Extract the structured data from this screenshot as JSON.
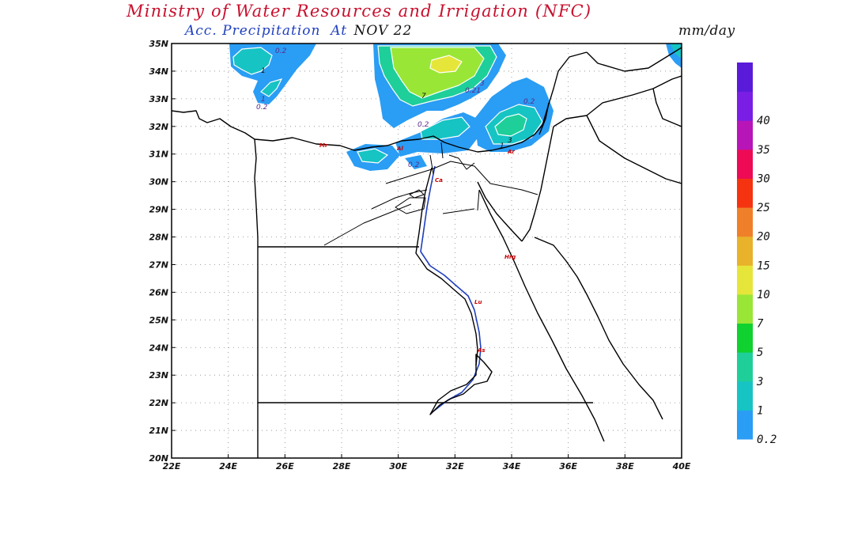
{
  "title": "Ministry of Water Resources and Irrigation (NFC)",
  "subtitle": {
    "product": "Acc. Precipitation",
    "at": "At",
    "date": "NOV 22"
  },
  "units": "mm/day",
  "map": {
    "lon_ticks": [
      "22E",
      "24E",
      "26E",
      "28E",
      "30E",
      "32E",
      "34E",
      "36E",
      "38E",
      "40E"
    ],
    "lat_ticks": [
      "20N",
      "21N",
      "22N",
      "23N",
      "24N",
      "25N",
      "26N",
      "27N",
      "28N",
      "29N",
      "30N",
      "31N",
      "32N",
      "33N",
      "34N",
      "35N"
    ],
    "contour_labels": [
      "0.2",
      "1",
      "1",
      "0.2",
      "7",
      "3",
      "0.21",
      "0.2",
      "0.2",
      "1",
      "3",
      "0.2"
    ],
    "cities": [
      "Mr",
      "Al",
      "Ca",
      "Hrg",
      "Lu",
      "As",
      "Ar"
    ]
  },
  "colorbar": {
    "levels": [
      "0.2",
      "1",
      "3",
      "5",
      "7",
      "10",
      "15",
      "20",
      "25",
      "30",
      "35",
      "40"
    ],
    "colors": [
      "#2a9df4",
      "#16c4c4",
      "#1ecf9a",
      "#0fd12f",
      "#9ae636",
      "#e6e63a",
      "#e8b22a",
      "#f07f2a",
      "#f53311",
      "#ee0a55",
      "#b815b8",
      "#7a1ee6",
      "#5a1ad9"
    ]
  }
}
